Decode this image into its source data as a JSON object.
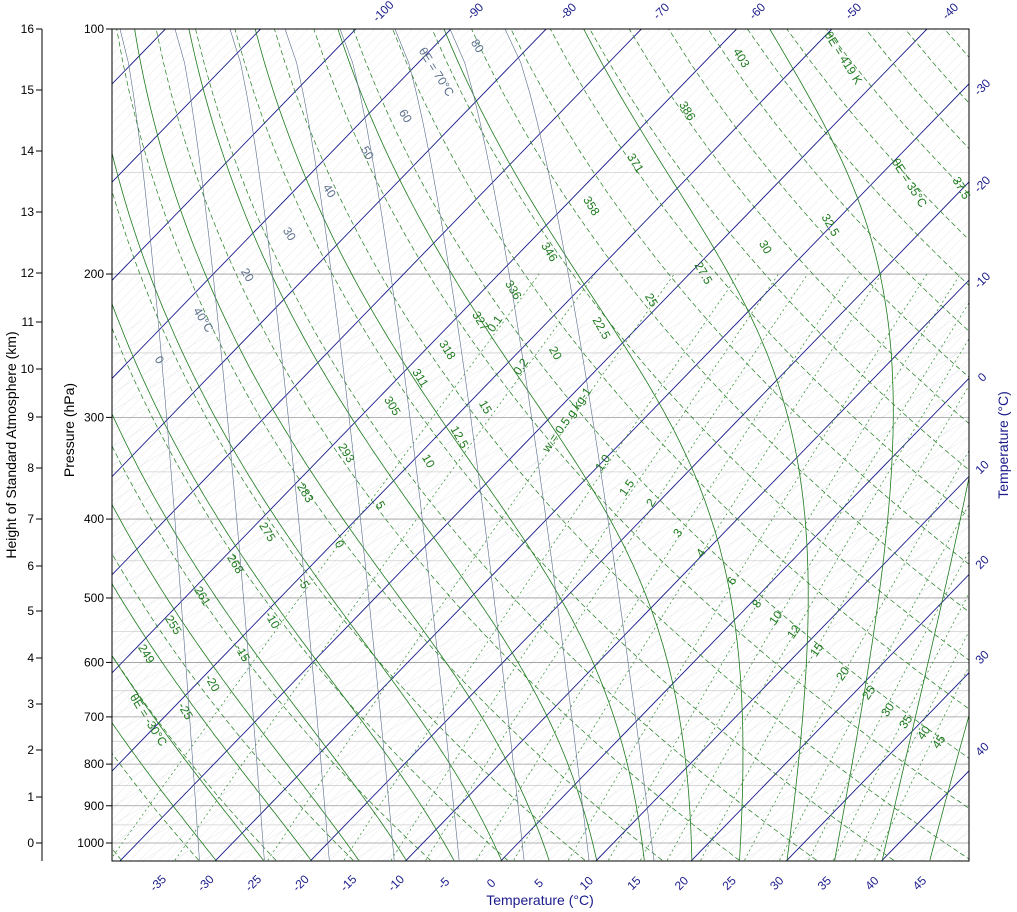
{
  "chart_data": {
    "type": "line",
    "chart_kind": "skew-T log-P thermodynamic diagram",
    "left_axis": {
      "label": "Height of Standard Atmosphere (km)",
      "ticks": [
        "16",
        "15",
        "14",
        "13",
        "12",
        "11",
        "10",
        "9",
        "8",
        "7",
        "6",
        "5",
        "4",
        "3",
        "2",
        "1",
        "0"
      ]
    },
    "pressure_axis": {
      "label": "Pressure (hPa)",
      "scale": "log",
      "range": [
        1050,
        100
      ],
      "ticks": [
        "100",
        "200",
        "300",
        "400",
        "500",
        "600",
        "700",
        "800",
        "900",
        "1000"
      ]
    },
    "bottom_axis": {
      "label": "Temperature (°C)",
      "ticks": [
        "-35",
        "-30",
        "-25",
        "-20",
        "-15",
        "-10",
        "-5",
        "0",
        "5",
        "10",
        "15",
        "20",
        "25",
        "30",
        "35",
        "40",
        "45"
      ]
    },
    "top_axis": {
      "ticks": [
        "-100",
        "-90",
        "-80",
        "-70",
        "-60",
        "-50",
        "-40"
      ]
    },
    "right_axis": {
      "label": "Temperature (°C)",
      "ticks": [
        "-30",
        "-20",
        "-10",
        "0",
        "10",
        "20",
        "30",
        "40"
      ]
    },
    "dry_adiabat_labels": [
      "249",
      "255",
      "261",
      "268",
      "275",
      "283",
      "293",
      "305",
      "311",
      "318",
      "327",
      "336",
      "346",
      "358",
      "371",
      "386",
      "403"
    ],
    "theta_e_labels": {
      "top": "θE = 419 K",
      "right": "θE = 35°C",
      "bottom": "θE = -30°C",
      "upper_left": "θE = 70°C",
      "upper_left_2": "40°C"
    },
    "moist_adiabat_values": [
      "-25",
      "-20",
      "-15",
      "-10",
      "-5",
      "0",
      "5",
      "10",
      "12.5",
      "15",
      "20",
      "22.5",
      "25",
      "27.5",
      "30",
      "32.5",
      "37.5"
    ],
    "blue_gray_labels": [
      "80",
      "60",
      "50",
      "40",
      "30",
      "20",
      "0"
    ],
    "mixing_ratio_labels": [
      "0.1",
      "0.2",
      "w = 0.5 g kg-1",
      "1.0",
      "1.5",
      "2",
      "3",
      "4",
      "6",
      "8",
      "10",
      "12",
      "15",
      "20",
      "25",
      "30",
      "35",
      "40",
      "45"
    ],
    "colors": {
      "isotherm": "#1a1a8c",
      "isobar": "#9a9a9a",
      "dry_adiabat": "#1e7a1e",
      "moist_adiabat": "#1e7a1e",
      "mixing_ratio": "#2e8b2e",
      "theta_e_blue": "#5a6e8c",
      "text": "#000000"
    }
  }
}
